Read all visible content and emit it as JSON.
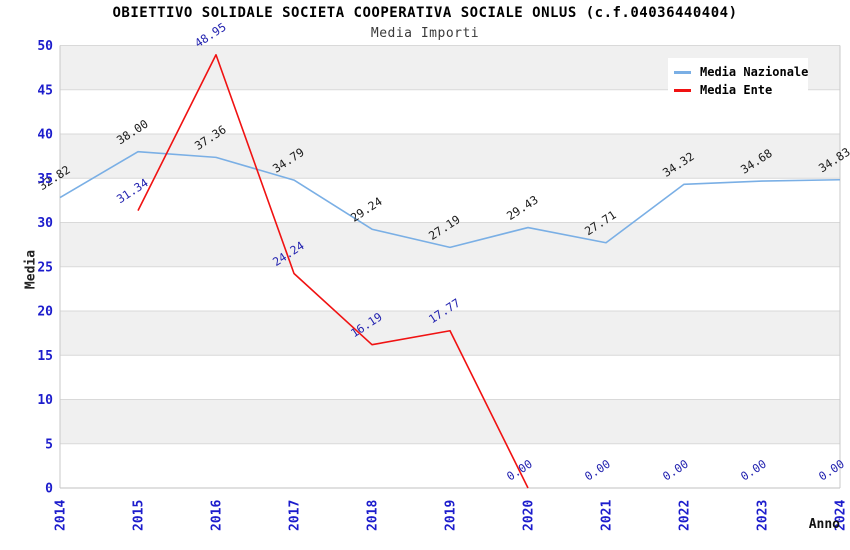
{
  "title": "OBIETTIVO SOLIDALE SOCIETA COOPERATIVA SOCIALE ONLUS (c.f.04036440404)",
  "subtitle": "Media Importi",
  "chart_data": {
    "type": "line",
    "x": [
      2014,
      2015,
      2016,
      2017,
      2018,
      2019,
      2020,
      2021,
      2022,
      2023,
      2024
    ],
    "xlabel": "Anno",
    "ylabel": "Media",
    "ylim": [
      0,
      50
    ],
    "ytick_step": 5,
    "grid": "horizontal-bands",
    "legend_position": "top-right",
    "series": [
      {
        "name": "Media Nazionale",
        "color": "#7aafe5",
        "label_color": "#1a1a1a",
        "start_index": 0,
        "values": [
          32.82,
          38.0,
          37.36,
          34.79,
          29.24,
          27.19,
          29.43,
          27.71,
          34.32,
          34.68,
          34.83
        ]
      },
      {
        "name": "Media Ente",
        "color": "#f01212",
        "label_color": "#2424b0",
        "start_index": 1,
        "line_end_year": 2020,
        "values": [
          31.34,
          48.95,
          24.24,
          16.19,
          17.77,
          0.0,
          0.0,
          0.0,
          0.0,
          0.0
        ]
      }
    ]
  },
  "colors": {
    "axis_tick_labels": "#1c1ccc",
    "band_gray": "#f0f0f0",
    "gridline": "#d9d9d9",
    "plot_border": "#c9c9c9",
    "background": "#ffffff"
  }
}
